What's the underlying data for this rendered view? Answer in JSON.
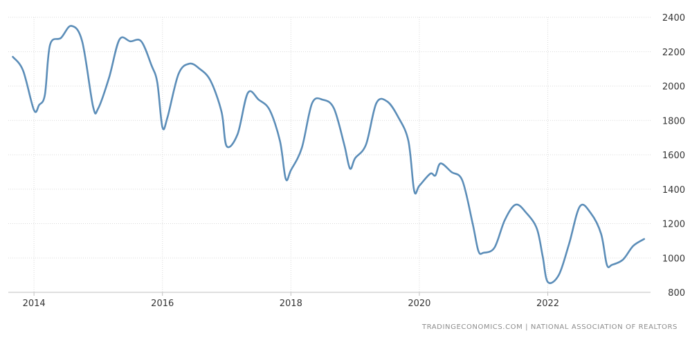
{
  "chart_data": {
    "type": "line",
    "color": "#5b8db8",
    "gridline_color": "#d9d9d9",
    "grid": true,
    "ylim": [
      800,
      2400
    ],
    "y_ticks": [
      800,
      1000,
      1200,
      1400,
      1600,
      1800,
      2000,
      2200,
      2400
    ],
    "y_axis_position": "right",
    "x_ticks": [
      "2014",
      "2016",
      "2018",
      "2020",
      "2022"
    ],
    "series": [
      {
        "x": [
          2013.67,
          2013.83,
          2014.0,
          2014.08,
          2014.17,
          2014.25,
          2014.42,
          2014.58,
          2014.75,
          2014.92,
          2015.0,
          2015.17,
          2015.33,
          2015.5,
          2015.67,
          2015.83,
          2015.92,
          2016.0,
          2016.08,
          2016.25,
          2016.42,
          2016.58,
          2016.75,
          2016.92,
          2017.0,
          2017.17,
          2017.33,
          2017.5,
          2017.67,
          2017.83,
          2017.92,
          2018.0,
          2018.17,
          2018.33,
          2018.5,
          2018.67,
          2018.83,
          2018.92,
          2019.0,
          2019.17,
          2019.33,
          2019.5,
          2019.67,
          2019.83,
          2019.92,
          2020.0,
          2020.17,
          2020.25,
          2020.33,
          2020.5,
          2020.67,
          2020.83,
          2020.92,
          2021.0,
          2021.17,
          2021.33,
          2021.5,
          2021.67,
          2021.83,
          2021.92,
          2022.0,
          2022.17,
          2022.33,
          2022.5,
          2022.67,
          2022.83,
          2022.92,
          2023.0,
          2023.17,
          2023.33,
          2023.5
        ],
        "y": [
          2170,
          2090,
          1860,
          1890,
          1950,
          2240,
          2280,
          2350,
          2260,
          1880,
          1870,
          2050,
          2270,
          2260,
          2260,
          2120,
          2020,
          1760,
          1820,
          2070,
          2130,
          2100,
          2030,
          1850,
          1650,
          1720,
          1960,
          1920,
          1860,
          1680,
          1460,
          1510,
          1640,
          1900,
          1920,
          1870,
          1660,
          1520,
          1580,
          1660,
          1900,
          1910,
          1820,
          1680,
          1390,
          1420,
          1490,
          1480,
          1550,
          1500,
          1450,
          1200,
          1040,
          1030,
          1060,
          1220,
          1310,
          1260,
          1170,
          1010,
          860,
          900,
          1080,
          1300,
          1260,
          1140,
          960,
          960,
          990,
          1070,
          1110
        ]
      }
    ],
    "source_text": "TRADINGECONOMICS.COM  |  NATIONAL ASSOCIATION OF REALTORS"
  }
}
